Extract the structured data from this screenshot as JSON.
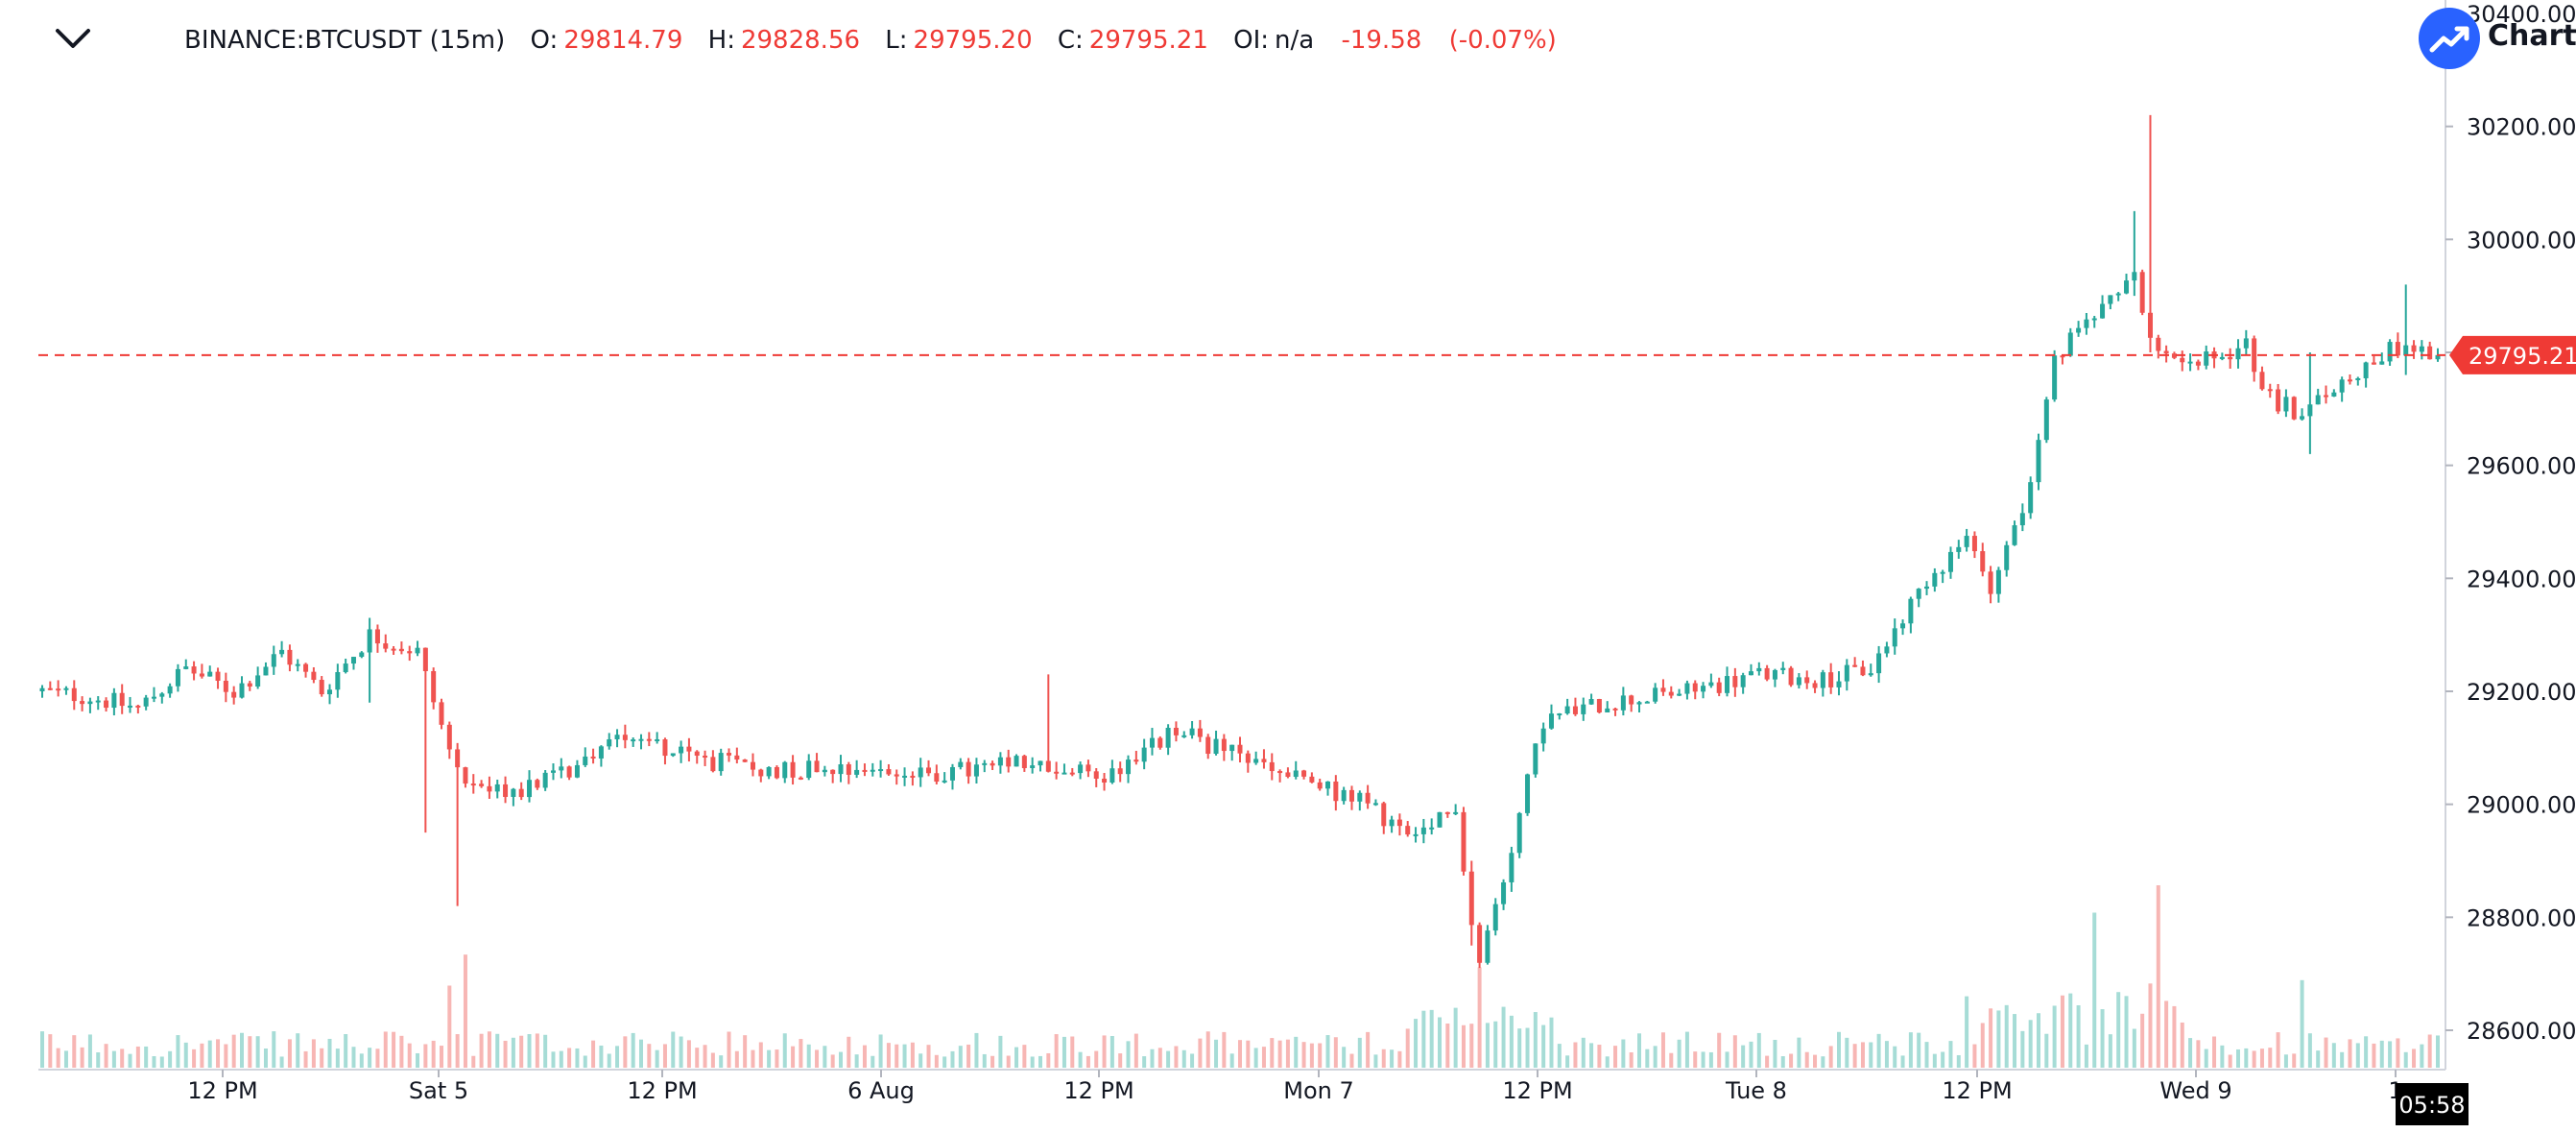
{
  "legend": {
    "symbol": "BINANCE:BTCUSDT (15m)",
    "open_label": "O:",
    "open": "29814.79",
    "high_label": "H:",
    "high": "29828.56",
    "low_label": "L:",
    "low": "29795.20",
    "close_label": "C:",
    "close": "29795.21",
    "oi_label": "OI:",
    "oi": "n/a",
    "change": "-19.58",
    "change_pct": "(-0.07%)"
  },
  "brand": {
    "text": "Charts p"
  },
  "price_label": "29795.21",
  "countdown": "05:58",
  "colors": {
    "up": "#26a69a",
    "down": "#ef5350",
    "up_volume": "#a6dcd6",
    "down_volume": "#f7b6b4",
    "price_line": "#ef3a35",
    "axis_text": "#131722"
  },
  "chart_data": {
    "type": "candlestick",
    "symbol": "BINANCE:BTCUSDT",
    "interval": "15m",
    "ylim": [
      28550,
      30400
    ],
    "y_ticks": [
      "30400.00",
      "30200.00",
      "30000.00",
      "29800.00",
      "29600.00",
      "29400.00",
      "29200.00",
      "29000.00",
      "28800.00",
      "28600.00"
    ],
    "x_ticks": [
      "12 PM",
      "Sat 5",
      "12 PM",
      "6 Aug",
      "12 PM",
      "Mon 7",
      "12 PM",
      "Tue 8",
      "12 PM",
      "Wed 9",
      "1"
    ],
    "last_price": 29795.21,
    "close_path": [
      [
        0,
        29200
      ],
      [
        6,
        29190
      ],
      [
        12,
        29170
      ],
      [
        18,
        29240
      ],
      [
        24,
        29200
      ],
      [
        30,
        29270
      ],
      [
        35,
        29200
      ],
      [
        41,
        29300
      ],
      [
        47,
        29270
      ],
      [
        52,
        29050
      ],
      [
        58,
        29020
      ],
      [
        66,
        29060
      ],
      [
        73,
        29130
      ],
      [
        82,
        29080
      ],
      [
        91,
        29060
      ],
      [
        100,
        29070
      ],
      [
        110,
        29050
      ],
      [
        122,
        29070
      ],
      [
        133,
        29050
      ],
      [
        142,
        29130
      ],
      [
        156,
        29050
      ],
      [
        166,
        29000
      ],
      [
        172,
        28930
      ],
      [
        177,
        29000
      ],
      [
        179,
        28790
      ],
      [
        180,
        28720
      ],
      [
        183,
        28870
      ],
      [
        188,
        29150
      ],
      [
        196,
        29180
      ],
      [
        206,
        29200
      ],
      [
        215,
        29230
      ],
      [
        223,
        29220
      ],
      [
        229,
        29240
      ],
      [
        236,
        29400
      ],
      [
        241,
        29470
      ],
      [
        244,
        29390
      ],
      [
        249,
        29560
      ],
      [
        252,
        29780
      ],
      [
        256,
        29860
      ],
      [
        262,
        29950
      ],
      [
        264,
        29810
      ],
      [
        270,
        29780
      ],
      [
        276,
        29810
      ],
      [
        279,
        29720
      ],
      [
        283,
        29690
      ],
      [
        289,
        29760
      ],
      [
        295,
        29810
      ],
      [
        300,
        29795
      ]
    ],
    "wicks": [
      {
        "index": 41,
        "high": 29330,
        "low": 29180
      },
      {
        "index": 48,
        "high": 29120,
        "low": 28950
      },
      {
        "index": 52,
        "high": 29090,
        "low": 28820
      },
      {
        "index": 126,
        "high": 29230,
        "low": 29150
      },
      {
        "index": 179,
        "high": 28900,
        "low": 28750
      },
      {
        "index": 264,
        "high": 30220,
        "low": 29800
      },
      {
        "index": 262,
        "high": 30050,
        "low": 29900
      },
      {
        "index": 284,
        "high": 29800,
        "low": 29620
      },
      {
        "index": 296,
        "high": 29920,
        "low": 29760
      }
    ],
    "volume_spikes": [
      {
        "index": 51,
        "level": 0.45
      },
      {
        "index": 53,
        "level": 0.62
      },
      {
        "index": 180,
        "level": 0.55
      },
      {
        "index": 257,
        "level": 0.85
      },
      {
        "index": 265,
        "level": 1.0
      },
      {
        "index": 283,
        "level": 0.48
      }
    ]
  }
}
